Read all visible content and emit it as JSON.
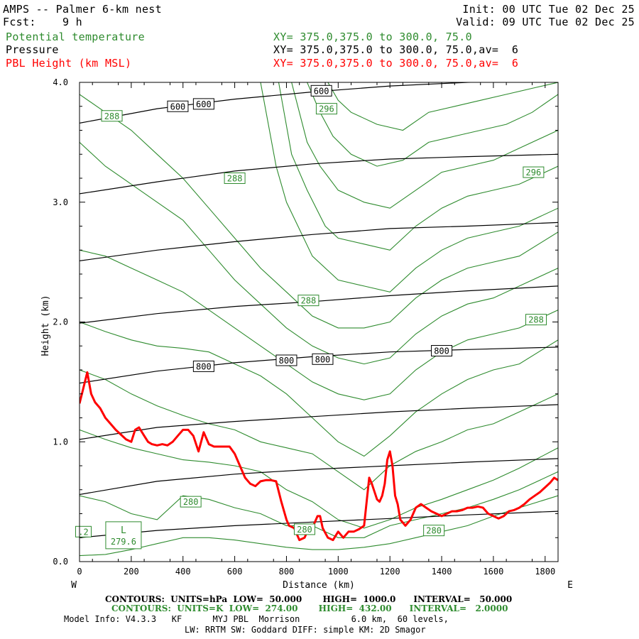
{
  "header": {
    "title": "AMPS -- Palmer 6-km nest",
    "fcst": "Fcst:    9 h",
    "init": "Init: 00 UTC Tue 02 Dec 25",
    "valid": "Valid: 09 UTC Tue 02 Dec 25",
    "legend": [
      {
        "label": "Potential temperature",
        "xy": "XY= 375.0,375.0 to 300.0, 75.0",
        "color": "#2e8b2e"
      },
      {
        "label": "Pressure",
        "xy": "XY= 375.0,375.0 to 300.0, 75.0,av=  6",
        "color": "#000000"
      },
      {
        "label": "PBL Height (km MSL)",
        "xy": "XY= 375.0,375.0 to 300.0, 75.0,av=  6",
        "color": "#ff0000"
      }
    ]
  },
  "chart_data": {
    "type": "line",
    "xlabel": "Distance (km)",
    "ylabel": "Height (km)",
    "xlim": [
      0,
      1850
    ],
    "ylim": [
      0,
      4.0
    ],
    "xticks": [
      0,
      200,
      400,
      600,
      800,
      1000,
      1200,
      1400,
      1600,
      1800
    ],
    "yticks": [
      0.0,
      1.0,
      2.0,
      3.0,
      4.0
    ],
    "xtick_labels": [
      "0",
      "200",
      "400",
      "600",
      "800",
      "1000",
      "1200",
      "1400",
      "1600",
      "1800"
    ],
    "ytick_labels": [
      "0.0",
      "1.0",
      "2.0",
      "3.0",
      "4.0"
    ],
    "west_label": "W",
    "east_label": "E",
    "pressure_isobars": [
      {
        "x": [
          0,
          300,
          600,
          900,
          1200,
          1500,
          1850
        ],
        "y": [
          3.66,
          3.78,
          3.86,
          3.92,
          3.97,
          4.0,
          4.02
        ]
      },
      {
        "x": [
          0,
          300,
          600,
          900,
          1200,
          1500,
          1850
        ],
        "y": [
          3.07,
          3.17,
          3.26,
          3.32,
          3.36,
          3.38,
          3.4
        ]
      },
      {
        "x": [
          0,
          300,
          600,
          900,
          1200,
          1500,
          1850
        ],
        "y": [
          2.51,
          2.6,
          2.67,
          2.73,
          2.78,
          2.8,
          2.83
        ]
      },
      {
        "x": [
          0,
          300,
          600,
          900,
          1200,
          1500,
          1850
        ],
        "y": [
          1.99,
          2.07,
          2.13,
          2.17,
          2.22,
          2.26,
          2.3
        ]
      },
      {
        "x": [
          0,
          300,
          600,
          900,
          1200,
          1500,
          1850
        ],
        "y": [
          1.49,
          1.59,
          1.66,
          1.71,
          1.75,
          1.77,
          1.79
        ]
      },
      {
        "x": [
          0,
          300,
          600,
          900,
          1200,
          1500,
          1850
        ],
        "y": [
          1.02,
          1.12,
          1.17,
          1.21,
          1.25,
          1.28,
          1.31
        ]
      },
      {
        "x": [
          0,
          300,
          600,
          900,
          1200,
          1500,
          1850
        ],
        "y": [
          0.56,
          0.67,
          0.73,
          0.77,
          0.8,
          0.83,
          0.86
        ]
      },
      {
        "x": [
          0,
          300,
          600,
          900,
          1200,
          1500,
          1850
        ],
        "y": [
          0.2,
          0.26,
          0.3,
          0.33,
          0.36,
          0.39,
          0.42
        ]
      }
    ],
    "pressure_labels": [
      {
        "text": "600",
        "x": 380,
        "y": 3.8
      },
      {
        "text": "600",
        "x": 480,
        "y": 3.82
      },
      {
        "text": "600",
        "x": 935,
        "y": 3.93
      },
      {
        "text": "800",
        "x": 480,
        "y": 1.63
      },
      {
        "text": "800",
        "x": 800,
        "y": 1.68
      },
      {
        "text": "800",
        "x": 940,
        "y": 1.69
      },
      {
        "text": "800",
        "x": 1400,
        "y": 1.76
      }
    ],
    "theta_contours": [
      {
        "x": [
          0,
          100,
          200,
          300,
          400,
          500,
          600,
          700,
          800,
          900,
          1000,
          1100,
          1200,
          1300,
          1400,
          1500,
          1600,
          1700,
          1850
        ],
        "y": [
          0.05,
          0.06,
          0.1,
          0.15,
          0.2,
          0.2,
          0.18,
          0.15,
          0.12,
          0.1,
          0.1,
          0.12,
          0.15,
          0.2,
          0.25,
          0.3,
          0.38,
          0.45,
          0.55
        ]
      },
      {
        "x": [
          0,
          100,
          200,
          300,
          400,
          500,
          600,
          700,
          800,
          900,
          1000,
          1100,
          1200,
          1300,
          1400,
          1500,
          1600,
          1700,
          1850
        ],
        "y": [
          0.55,
          0.5,
          0.4,
          0.35,
          0.55,
          0.52,
          0.45,
          0.4,
          0.3,
          0.3,
          0.2,
          0.2,
          0.3,
          0.35,
          0.4,
          0.45,
          0.52,
          0.6,
          0.75
        ]
      },
      {
        "x": [
          0,
          100,
          200,
          300,
          400,
          500,
          600,
          700,
          800,
          900,
          1000,
          1100,
          1200,
          1300,
          1400,
          1500,
          1600,
          1700,
          1850
        ],
        "y": [
          1.1,
          1.02,
          0.95,
          0.9,
          0.85,
          0.83,
          0.8,
          0.75,
          0.6,
          0.5,
          0.35,
          0.28,
          0.35,
          0.45,
          0.52,
          0.6,
          0.68,
          0.78,
          0.95
        ]
      },
      {
        "x": [
          0,
          100,
          200,
          300,
          400,
          500,
          600,
          700,
          800,
          900,
          1000,
          1100,
          1200,
          1300,
          1400,
          1500,
          1600,
          1700,
          1850
        ],
        "y": [
          1.6,
          1.52,
          1.4,
          1.3,
          1.22,
          1.15,
          1.1,
          1.0,
          0.95,
          0.9,
          0.75,
          0.6,
          0.8,
          0.92,
          1.0,
          1.1,
          1.15,
          1.25,
          1.4
        ]
      },
      {
        "x": [
          0,
          100,
          200,
          300,
          400,
          500,
          600,
          700,
          800,
          900,
          1000,
          1100,
          1200,
          1300,
          1400,
          1500,
          1600,
          1700,
          1850
        ],
        "y": [
          2.0,
          1.92,
          1.85,
          1.8,
          1.78,
          1.75,
          1.65,
          1.55,
          1.4,
          1.2,
          1.0,
          0.88,
          1.05,
          1.25,
          1.4,
          1.52,
          1.6,
          1.65,
          1.85
        ]
      },
      {
        "x": [
          0,
          100,
          200,
          300,
          400,
          500,
          600,
          700,
          800,
          900,
          1000,
          1100,
          1200,
          1300,
          1400,
          1500,
          1600,
          1700,
          1850
        ],
        "y": [
          2.6,
          2.55,
          2.45,
          2.35,
          2.25,
          2.1,
          1.95,
          1.8,
          1.65,
          1.5,
          1.4,
          1.35,
          1.4,
          1.6,
          1.75,
          1.85,
          1.9,
          1.95,
          2.1
        ]
      },
      {
        "x": [
          0,
          100,
          200,
          300,
          400,
          500,
          600,
          700,
          800,
          900,
          1000,
          1100,
          1200,
          1300,
          1400,
          1500,
          1600,
          1700,
          1850
        ],
        "y": [
          3.5,
          3.3,
          3.15,
          3.0,
          2.85,
          2.6,
          2.35,
          2.15,
          1.95,
          1.8,
          1.7,
          1.65,
          1.7,
          1.9,
          2.05,
          2.15,
          2.2,
          2.3,
          2.45
        ]
      },
      {
        "x": [
          0,
          100,
          200,
          300,
          400,
          500,
          600,
          700,
          800,
          900,
          1000,
          1100,
          1200,
          1300,
          1400,
          1500,
          1600,
          1700,
          1850
        ],
        "y": [
          3.9,
          3.75,
          3.6,
          3.4,
          3.2,
          2.95,
          2.7,
          2.45,
          2.25,
          2.05,
          1.95,
          1.95,
          2.0,
          2.2,
          2.35,
          2.45,
          2.5,
          2.55,
          2.75
        ]
      },
      {
        "x": [
          700,
          760,
          800,
          900,
          1000,
          1100,
          1200,
          1300,
          1400,
          1500,
          1600,
          1700,
          1850
        ],
        "y": [
          4.0,
          3.3,
          3.0,
          2.55,
          2.35,
          2.3,
          2.25,
          2.45,
          2.6,
          2.7,
          2.75,
          2.8,
          2.95
        ]
      },
      {
        "x": [
          770,
          820,
          880,
          950,
          1000,
          1100,
          1200,
          1300,
          1400,
          1500,
          1600,
          1700,
          1850
        ],
        "y": [
          4.0,
          3.4,
          3.1,
          2.8,
          2.7,
          2.65,
          2.6,
          2.8,
          2.95,
          3.05,
          3.1,
          3.15,
          3.3
        ]
      },
      {
        "x": [
          820,
          880,
          930,
          1000,
          1100,
          1200,
          1300,
          1400,
          1500,
          1600,
          1700,
          1850
        ],
        "y": [
          4.0,
          3.5,
          3.3,
          3.1,
          3.0,
          2.95,
          3.1,
          3.25,
          3.3,
          3.35,
          3.45,
          3.6
        ]
      },
      {
        "x": [
          880,
          930,
          980,
          1050,
          1150,
          1250,
          1350,
          1450,
          1550,
          1650,
          1750,
          1850
        ],
        "y": [
          4.0,
          3.75,
          3.55,
          3.4,
          3.3,
          3.35,
          3.5,
          3.55,
          3.6,
          3.65,
          3.75,
          3.9
        ]
      },
      {
        "x": [
          960,
          1000,
          1050,
          1150,
          1250,
          1350,
          1450,
          1550,
          1650,
          1750,
          1850
        ],
        "y": [
          4.0,
          3.85,
          3.75,
          3.65,
          3.6,
          3.75,
          3.8,
          3.85,
          3.9,
          3.95,
          4.0
        ]
      }
    ],
    "theta_labels": [
      {
        "text": "288",
        "x": 125,
        "y": 3.72
      },
      {
        "text": "288",
        "x": 600,
        "y": 3.2
      },
      {
        "text": "296",
        "x": 955,
        "y": 3.78
      },
      {
        "text": "296",
        "x": 1755,
        "y": 3.25
      },
      {
        "text": "288",
        "x": 885,
        "y": 2.18
      },
      {
        "text": "288",
        "x": 1765,
        "y": 2.02
      },
      {
        "text": "280",
        "x": 430,
        "y": 0.5
      },
      {
        "text": "280",
        "x": 870,
        "y": 0.27
      },
      {
        "text": "280",
        "x": 1370,
        "y": 0.26
      },
      {
        "text": ".2",
        "x": 15,
        "y": 0.25
      }
    ],
    "low_marker": {
      "letter": "L",
      "value": "279.6",
      "x": 170,
      "y": 0.22
    },
    "pbl_height": {
      "name": "PBL Height (km MSL)",
      "x": [
        0,
        15,
        30,
        45,
        60,
        80,
        100,
        120,
        140,
        160,
        180,
        200,
        215,
        230,
        250,
        265,
        280,
        300,
        320,
        340,
        360,
        380,
        400,
        420,
        440,
        460,
        480,
        500,
        520,
        540,
        560,
        580,
        600,
        620,
        640,
        660,
        680,
        700,
        720,
        740,
        760,
        780,
        800,
        810,
        830,
        850,
        870,
        880,
        900,
        920,
        930,
        940,
        960,
        980,
        1000,
        1020,
        1040,
        1060,
        1080,
        1100,
        1110,
        1120,
        1130,
        1150,
        1160,
        1170,
        1180,
        1190,
        1200,
        1210,
        1220,
        1230,
        1240,
        1260,
        1280,
        1300,
        1320,
        1340,
        1360,
        1380,
        1400,
        1420,
        1440,
        1460,
        1480,
        1500,
        1520,
        1540,
        1560,
        1580,
        1600,
        1620,
        1640,
        1660,
        1680,
        1700,
        1720,
        1740,
        1760,
        1780,
        1800,
        1820,
        1835,
        1850
      ],
      "y": [
        1.32,
        1.45,
        1.58,
        1.4,
        1.33,
        1.28,
        1.2,
        1.15,
        1.1,
        1.06,
        1.02,
        1.0,
        1.1,
        1.12,
        1.05,
        1.0,
        0.98,
        0.97,
        0.98,
        0.97,
        1.0,
        1.05,
        1.1,
        1.1,
        1.05,
        0.92,
        1.08,
        0.98,
        0.96,
        0.96,
        0.96,
        0.96,
        0.9,
        0.8,
        0.7,
        0.65,
        0.63,
        0.67,
        0.68,
        0.68,
        0.67,
        0.5,
        0.35,
        0.3,
        0.28,
        0.18,
        0.2,
        0.25,
        0.28,
        0.38,
        0.38,
        0.28,
        0.2,
        0.18,
        0.25,
        0.2,
        0.25,
        0.25,
        0.27,
        0.3,
        0.5,
        0.7,
        0.65,
        0.52,
        0.5,
        0.55,
        0.65,
        0.85,
        0.92,
        0.8,
        0.55,
        0.48,
        0.35,
        0.3,
        0.35,
        0.45,
        0.48,
        0.45,
        0.42,
        0.4,
        0.38,
        0.4,
        0.42,
        0.42,
        0.43,
        0.45,
        0.45,
        0.46,
        0.45,
        0.4,
        0.38,
        0.36,
        0.38,
        0.42,
        0.43,
        0.45,
        0.48,
        0.52,
        0.55,
        0.58,
        0.62,
        0.66,
        0.7,
        0.68
      ],
      "color": "#ff0000"
    }
  },
  "footer": {
    "contours_black": "CONTOURS:  UNITS=hPa  LOW=  50.000       HIGH=  1000.0      INTERVAL=   50.000",
    "contours_green": "CONTOURS:  UNITS=K  LOW=  274.00       HIGH=  432.00      INTERVAL=   2.0000",
    "model_info": "Model Info: V4.3.3   KF      MYJ PBL  Morrison          6.0 km,  60 levels,",
    "physics": "LW: RRTM SW: Goddard DIFF: simple KM: 2D Smagor"
  }
}
